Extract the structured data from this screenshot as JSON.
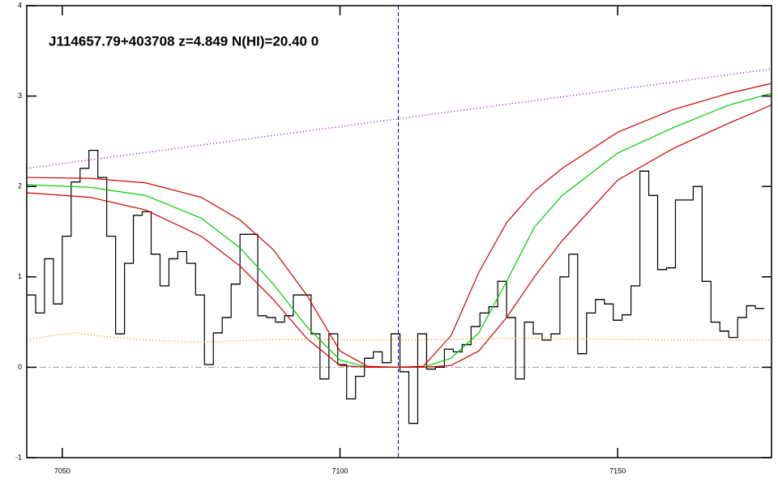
{
  "chart_data": {
    "type": "line",
    "title": "J114657.79+403708 z=4.849 N(HI)=20.40 0",
    "xlim": [
      7043.6,
      7177.7
    ],
    "ylim": [
      -1,
      4
    ],
    "xticks": [
      7050,
      7100,
      7150
    ],
    "yticks": [
      -1,
      0,
      1,
      2,
      3,
      4
    ],
    "hlines": [
      0
    ],
    "vlines": [
      7110.5
    ],
    "series": [
      {
        "style": "steps",
        "color": "#000000",
        "bins": [
          7043.6,
          7045.2,
          7046.8,
          7048.4,
          7050.0,
          7051.6,
          7053.2,
          7054.8,
          7056.4,
          7058.0,
          7059.6,
          7061.2,
          7062.8,
          7064.4,
          7066.0,
          7067.6,
          7069.2,
          7070.8,
          7072.4,
          7074.0,
          7075.6,
          7077.2,
          7078.8,
          7080.4,
          7082.0,
          7083.6,
          7085.2,
          7086.8,
          7088.4,
          7090.0,
          7091.6,
          7093.2,
          7094.8,
          7096.4,
          7098.0,
          7099.6,
          7101.2,
          7102.8,
          7104.4,
          7106.0,
          7107.6,
          7109.2,
          7110.8,
          7112.4,
          7114.0,
          7115.6,
          7117.2,
          7118.8,
          7120.4,
          7122.0,
          7123.6,
          7125.2,
          7126.8,
          7128.4,
          7130.0,
          7131.6,
          7133.2,
          7134.8,
          7136.4,
          7138.0,
          7139.6,
          7141.2,
          7142.8,
          7144.4,
          7146.0,
          7147.6,
          7149.2,
          7150.8,
          7152.4,
          7154.0,
          7155.6,
          7157.2,
          7158.8,
          7160.4,
          7162.0,
          7163.6,
          7165.2,
          7166.8,
          7168.4,
          7170.0,
          7171.6,
          7173.2,
          7174.8,
          7176.4
        ],
        "values": [
          0.8,
          0.6,
          1.2,
          0.7,
          1.45,
          2.05,
          2.2,
          2.4,
          2.1,
          1.45,
          0.37,
          1.15,
          1.68,
          1.72,
          1.25,
          0.9,
          1.2,
          1.28,
          1.15,
          0.8,
          0.03,
          0.38,
          0.55,
          0.92,
          1.47,
          1.47,
          0.57,
          0.55,
          0.5,
          0.57,
          0.8,
          0.8,
          0.37,
          -0.13,
          0.37,
          0.03,
          -0.35,
          -0.1,
          0.1,
          0.17,
          0.05,
          0.37,
          -0.05,
          -0.62,
          0.37,
          -0.02,
          0.0,
          0.2,
          0.17,
          0.25,
          0.45,
          0.6,
          0.67,
          0.95,
          0.55,
          -0.13,
          0.5,
          0.37,
          0.3,
          0.37,
          1.0,
          1.25,
          0.15,
          0.6,
          0.75,
          0.7,
          0.52,
          0.58,
          0.9,
          2.17,
          1.9,
          1.08,
          1.1,
          1.85,
          1.85,
          2.0,
          0.95,
          0.5,
          0.4,
          0.33,
          0.55,
          0.68,
          0.65
        ]
      },
      {
        "style": "solid",
        "color": "#00cc00",
        "x": [
          7043.6,
          7055,
          7065,
          7075,
          7082,
          7088,
          7094,
          7100,
          7105,
          7110,
          7115,
          7120,
          7125,
          7130,
          7135,
          7140,
          7150,
          7160,
          7170,
          7177.7
        ],
        "values": [
          2.02,
          1.99,
          1.9,
          1.65,
          1.32,
          0.92,
          0.45,
          0.08,
          0,
          0,
          0,
          0.1,
          0.38,
          0.95,
          1.55,
          1.9,
          2.37,
          2.65,
          2.9,
          3.03
        ]
      },
      {
        "style": "solid",
        "color": "#cc0000",
        "x": [
          7043.6,
          7055,
          7065,
          7075,
          7082,
          7088,
          7094,
          7100,
          7105,
          7110,
          7115,
          7120,
          7125,
          7130,
          7135,
          7140,
          7150,
          7160,
          7170,
          7177.7
        ],
        "values": [
          2.1,
          2.09,
          2.04,
          1.88,
          1.63,
          1.3,
          0.8,
          0.18,
          0.01,
          0,
          0.01,
          0.35,
          1.05,
          1.6,
          1.95,
          2.2,
          2.6,
          2.85,
          3.03,
          3.14
        ]
      },
      {
        "style": "solid",
        "color": "#cc0000",
        "x": [
          7043.6,
          7055,
          7065,
          7075,
          7082,
          7088,
          7094,
          7100,
          7105,
          7110,
          7115,
          7120,
          7125,
          7130,
          7135,
          7140,
          7150,
          7160,
          7170,
          7177.7
        ],
        "values": [
          1.93,
          1.88,
          1.74,
          1.45,
          1.12,
          0.75,
          0.32,
          0.02,
          0,
          0,
          0,
          0.02,
          0.18,
          0.55,
          1.0,
          1.4,
          2.07,
          2.42,
          2.7,
          2.9
        ]
      },
      {
        "style": "dotted",
        "color": "#9900cc",
        "x": [
          7043.6,
          7177.7
        ],
        "values": [
          2.2,
          3.3
        ]
      },
      {
        "style": "dotted",
        "color": "#ff8800",
        "x": [
          7043.6,
          7048,
          7052,
          7058,
          7065,
          7075,
          7090,
          7110,
          7130,
          7150,
          7165,
          7177.7
        ],
        "values": [
          0.3,
          0.35,
          0.38,
          0.34,
          0.3,
          0.28,
          0.31,
          0.3,
          0.32,
          0.31,
          0.3,
          0.3
        ]
      }
    ]
  }
}
